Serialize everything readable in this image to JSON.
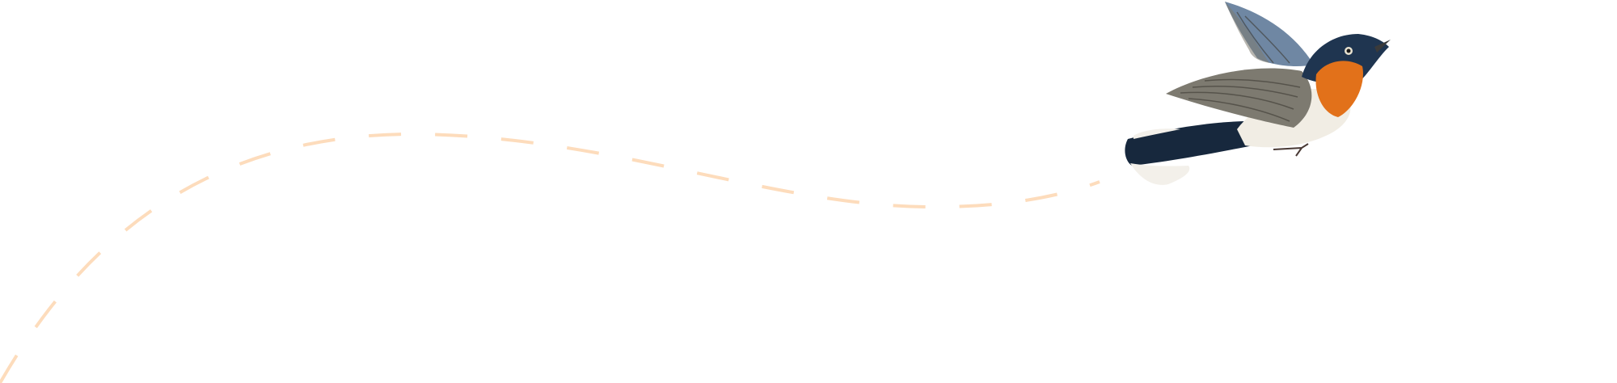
{
  "illustration": {
    "subject": "bird-icon",
    "flight_path_color": "#fddcbc",
    "colors": {
      "wing": "#7d7a70",
      "wing_blue": "#6f87a3",
      "head": "#1f3550",
      "throat": "#e2711a",
      "belly": "#f1ede4",
      "tail": "#17283d",
      "tail_tip": "#f3f0ea"
    }
  }
}
